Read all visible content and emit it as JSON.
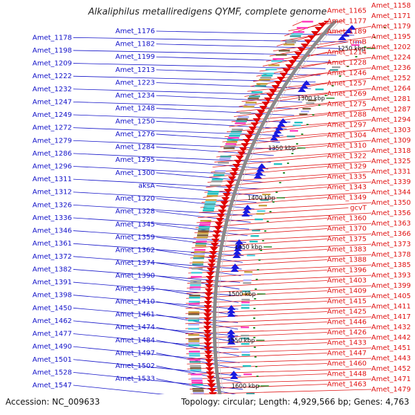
{
  "title": "Alkaliphilus metalliredigens QYMF, complete genome",
  "accession": "Accession: NC_009633",
  "topology": "Topology: circular; Length: 4,929,566 bp; Genes: 4,763",
  "colors": {
    "left_labels": "#1010c8",
    "right_labels": "#e01010",
    "backbone": "#8a8a8a",
    "kbp_ticks": "#2a8a2a"
  },
  "kbp_labels": [
    "1250 kbp",
    "1300 kbp",
    "1350 kbp",
    "1400 kbp",
    "1450 kbp",
    "1500 kbp",
    "1550 kbp",
    "1600 kbp"
  ],
  "left_genes": [
    "Amet_1176",
    "Amet_1178",
    "Amet_1182",
    "Amet_1198",
    "Amet_1199",
    "Amet_1209",
    "Amet_1213",
    "Amet_1222",
    "Amet_1223",
    "Amet_1232",
    "Amet_1234",
    "Amet_1247",
    "Amet_1248",
    "Amet_1249",
    "Amet_1250",
    "Amet_1272",
    "Amet_1276",
    "Amet_1279",
    "Amet_1284",
    "Amet_1286",
    "Amet_1295",
    "Amet_1296",
    "Amet_1300",
    "Amet_1311",
    "aksA",
    "Amet_1312",
    "Amet_1320",
    "Amet_1326",
    "Amet_1328",
    "Amet_1336",
    "Amet_1345",
    "Amet_1346",
    "Amet_1359",
    "Amet_1361",
    "Amet_1362",
    "Amet_1372",
    "Amet_1374",
    "Amet_1382",
    "Amet_1390",
    "Amet_1391",
    "Amet_1395",
    "Amet_1398",
    "Amet_1410",
    "Amet_1450",
    "Amet_1461",
    "Amet_1462",
    "Amet_1474",
    "Amet_1477",
    "Amet_1484",
    "Amet_1490",
    "Amet_1497",
    "Amet_1501",
    "Amet_1502",
    "Amet_1528",
    "Amet_1533",
    "Amet_1547"
  ],
  "right_genes": [
    "Amet_1158",
    "Amet_1165",
    "Amet_1171",
    "Amet_1177",
    "Amet_1179",
    "Amet_1189",
    "Amet_1195",
    "trmB",
    "Amet_1202",
    "Amet_1214",
    "Amet_1224",
    "Amet_1228",
    "Amet_1236",
    "Amet_1246",
    "Amet_1252",
    "Amet_1257",
    "Amet_1264",
    "Amet_1269",
    "Amet_1281",
    "Amet_1275",
    "Amet_1287",
    "Amet_1288",
    "Amet_1294",
    "Amet_1297",
    "Amet_1303",
    "Amet_1304",
    "Amet_1309",
    "Amet_1310",
    "Amet_1318",
    "Amet_1322",
    "Amet_1325",
    "Amet_1329",
    "Amet_1331",
    "Amet_1335",
    "Amet_1339",
    "Amet_1343",
    "Amet_1344",
    "Amet_1349",
    "Amet_1350",
    "gcvT",
    "Amet_1356",
    "Amet_1360",
    "Amet_1363",
    "Amet_1370",
    "Amet_1366",
    "Amet_1375",
    "Amet_1373",
    "Amet_1383",
    "Amet_1378",
    "Amet_1388",
    "Amet_1385",
    "Amet_1396",
    "Amet_1393",
    "Amet_1403",
    "Amet_1399",
    "Amet_1409",
    "Amet_1405",
    "Amet_1415",
    "Amet_1411",
    "Amet_1425",
    "Amet_1417",
    "Amet_1446",
    "Amet_1432",
    "Amet_1426",
    "Amet_1442",
    "Amet_1433",
    "Amet_1451",
    "Amet_1447",
    "Amet_1443",
    "Amet_1460",
    "Amet_1452",
    "Amet_1448",
    "Amet_1471",
    "Amet_1463",
    "Amet_1479"
  ]
}
